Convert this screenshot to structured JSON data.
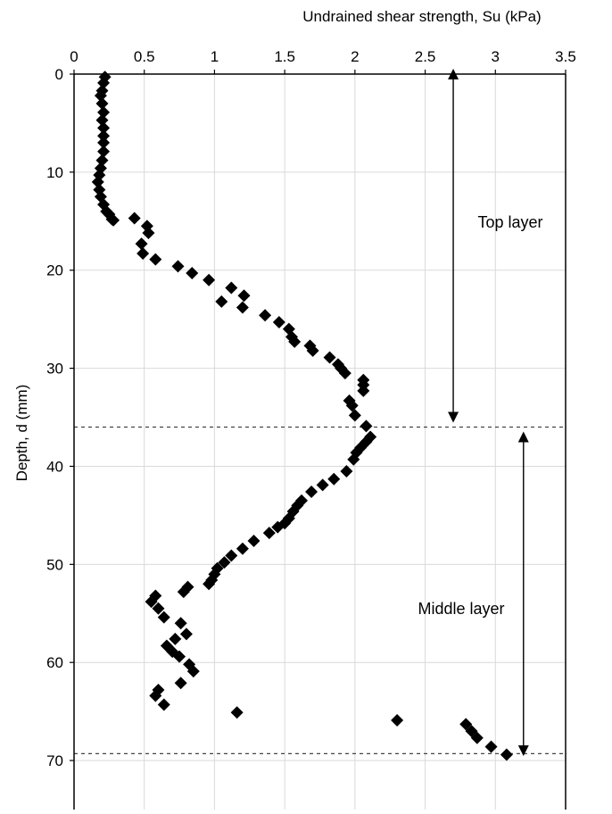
{
  "chart_data": {
    "type": "scatter",
    "title": "",
    "xlabel": "Undrained shear strength, Su (kPa)",
    "ylabel": "Depth, d (mm)",
    "xlim": [
      0,
      3.5
    ],
    "ylim": [
      0,
      75
    ],
    "y_reversed": true,
    "x_axis_position": "top",
    "x_ticks": [
      0,
      0.5,
      1,
      1.5,
      2,
      2.5,
      3,
      3.5
    ],
    "y_ticks": [
      0,
      10,
      20,
      30,
      40,
      50,
      60,
      70
    ],
    "x_tick_labels": [
      "0",
      "0.5",
      "1",
      "1.5",
      "2",
      "2.5",
      "3",
      "3.5"
    ],
    "y_tick_labels": [
      "0",
      "10",
      "20",
      "30",
      "40",
      "50",
      "60",
      "70"
    ],
    "grid": true,
    "legend": "none",
    "marker": "diamond",
    "marker_color": "#000000",
    "series": [
      {
        "x": [
          0.22,
          0.21,
          0.2,
          0.19,
          0.2,
          0.21,
          0.2,
          0.21,
          0.21,
          0.21,
          0.21,
          0.2,
          0.19,
          0.18,
          0.17,
          0.18,
          0.19,
          0.21,
          0.23,
          0.25,
          0.27,
          0.28,
          0.43,
          0.52,
          0.53,
          0.48,
          0.49,
          0.58,
          0.74,
          0.84,
          0.96,
          1.12,
          1.21,
          1.05,
          1.2,
          1.36,
          1.46,
          1.53,
          1.55,
          1.57,
          1.68,
          1.7,
          1.82,
          1.88,
          1.9,
          1.93,
          2.06,
          2.06,
          2.06,
          1.96,
          1.98,
          2.0,
          2.08,
          2.11,
          2.08,
          2.04,
          2.01,
          1.99,
          1.94,
          1.85,
          1.77,
          1.69,
          1.62,
          1.59,
          1.56,
          1.53,
          1.5,
          1.45,
          1.39,
          1.28,
          1.2,
          1.12,
          1.07,
          1.02,
          1.0,
          0.98,
          0.96,
          0.81,
          0.78,
          0.58,
          0.55,
          0.6,
          0.64,
          0.76,
          0.8,
          0.72,
          0.66,
          0.7,
          0.75,
          0.82,
          0.85,
          0.76,
          0.6,
          0.58,
          0.64,
          1.16,
          2.3,
          2.79,
          2.83,
          2.87,
          2.97,
          3.08
        ],
        "y": [
          0.3,
          0.9,
          1.7,
          2.2,
          3.0,
          3.9,
          4.7,
          5.5,
          6.3,
          7.0,
          7.9,
          8.8,
          9.6,
          10.3,
          11.0,
          11.8,
          12.5,
          13.3,
          14.0,
          14.3,
          14.8,
          14.9,
          14.7,
          15.5,
          16.2,
          17.3,
          18.3,
          18.9,
          19.6,
          20.3,
          21.0,
          21.8,
          22.6,
          23.2,
          23.8,
          24.6,
          25.3,
          26.0,
          26.8,
          27.3,
          27.7,
          28.2,
          28.9,
          29.6,
          30.0,
          30.5,
          31.2,
          31.7,
          32.3,
          33.3,
          33.8,
          34.8,
          35.9,
          37.0,
          37.5,
          38.1,
          38.6,
          39.3,
          40.5,
          41.3,
          41.9,
          42.6,
          43.5,
          44.0,
          44.6,
          45.3,
          45.8,
          46.2,
          46.8,
          47.6,
          48.4,
          49.1,
          49.8,
          50.4,
          51.0,
          51.6,
          52.0,
          52.3,
          52.8,
          53.2,
          53.8,
          54.5,
          55.4,
          56.0,
          57.1,
          57.6,
          58.3,
          58.9,
          59.4,
          60.2,
          60.9,
          62.1,
          62.8,
          63.4,
          64.3,
          65.1,
          65.9,
          66.3,
          67.0,
          67.7,
          68.6,
          69.4
        ]
      }
    ],
    "annotations": {
      "top_layer_label": "Top layer",
      "middle_layer_label": "Middle layer",
      "top_layer_range": [
        0,
        35
      ],
      "middle_layer_range": [
        37,
        69
      ],
      "top_layer_arrow_x": 2.7,
      "middle_layer_arrow_x": 3.2,
      "boundary_depths": [
        36,
        69.3
      ],
      "boundary_style": "dashed"
    }
  }
}
